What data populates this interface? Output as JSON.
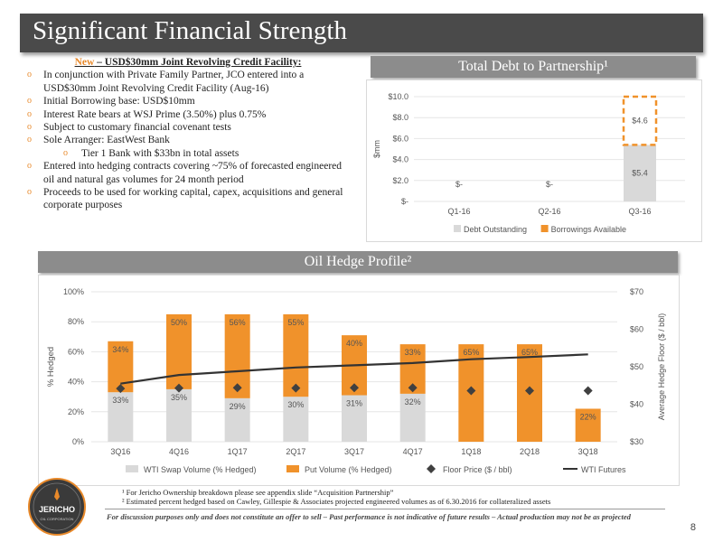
{
  "title": "Significant Financial Strength",
  "credit": {
    "heading_new": "New",
    "heading_rest": " – USD$30mm Joint Revolving Credit Facility:",
    "bullets": [
      {
        "text": "In conjunction with Private Family Partner, JCO entered into a USD$30mm Joint Revolving Credit Facility (Aug-16)",
        "sub": false
      },
      {
        "text": "Initial Borrowing base: USD$10mm",
        "sub": false
      },
      {
        "text": "Interest Rate bears at WSJ Prime (3.50%) plus 0.75%",
        "sub": false
      },
      {
        "text": "Subject to customary financial covenant tests",
        "sub": false
      },
      {
        "text": "Sole Arranger:  EastWest Bank",
        "sub": false
      },
      {
        "text": "Tier 1 Bank with $33bn in total assets",
        "sub": true
      },
      {
        "text": "Entered into hedging contracts covering ~75% of forecasted engineered oil and natural gas volumes for 24 month period",
        "sub": false
      },
      {
        "text": "Proceeds to be used for working capital, capex, acquisitions and general corporate purposes",
        "sub": false
      }
    ]
  },
  "debt_header": "Total Debt to Partnership¹",
  "hedge_header": "Oil Hedge Profile²",
  "chart_data": [
    {
      "type": "bar",
      "stacked": true,
      "categories": [
        "Q1-16",
        "Q2-16",
        "Q3-16"
      ],
      "series": [
        {
          "name": "Debt Outstanding",
          "values": [
            0,
            0,
            5.4
          ],
          "labels": [
            "$-",
            "$-",
            "$5.4"
          ],
          "color": "#d9d9d9"
        },
        {
          "name": "Borrowings Available",
          "values": [
            0,
            0,
            4.6
          ],
          "labels": [
            "",
            "",
            "$4.6"
          ],
          "color": "#f0922b"
        }
      ],
      "ylabel": "$mm",
      "ylim": [
        0,
        10
      ],
      "yticks": [
        "$-",
        "$2.0",
        "$4.0",
        "$6.0",
        "$8.0",
        "$10.0"
      ],
      "legend": "bottom"
    },
    {
      "type": "bar",
      "stacked": true,
      "categories": [
        "3Q16",
        "4Q16",
        "1Q17",
        "2Q17",
        "3Q17",
        "4Q17",
        "1Q18",
        "2Q18",
        "3Q18"
      ],
      "series": [
        {
          "name": "WTI Swap Volume (% Hedged)",
          "values": [
            33,
            35,
            29,
            30,
            31,
            32,
            0,
            0,
            0
          ],
          "labels": [
            "33%",
            "35%",
            "29%",
            "30%",
            "31%",
            "32%",
            "",
            "",
            ""
          ],
          "color": "#d9d9d9"
        },
        {
          "name": "Put Volume (% Hedged)",
          "values": [
            34,
            50,
            56,
            55,
            40,
            33,
            65,
            65,
            22
          ],
          "labels": [
            "34%",
            "50%",
            "56%",
            "55%",
            "40%",
            "33%",
            "65%",
            "65%",
            "22%"
          ],
          "color": "#f0922b"
        },
        {
          "name": "Floor Price ($ / bbl)",
          "type": "scatter",
          "axis": "right",
          "values": [
            44.2,
            44.3,
            44.4,
            44.3,
            44.4,
            44.4,
            43.6,
            43.6,
            43.6
          ],
          "color": "#404040"
        },
        {
          "name": "WTI Futures",
          "type": "line",
          "axis": "right",
          "values": [
            45.5,
            47.8,
            48.8,
            49.8,
            50.4,
            51.0,
            52.0,
            52.6,
            53.3
          ],
          "color": "#333333"
        }
      ],
      "ylabel": "% Hedged",
      "ylim": [
        0,
        100
      ],
      "yticks": [
        "0%",
        "20%",
        "40%",
        "60%",
        "80%",
        "100%"
      ],
      "y2label": "Average Hedge Floor ($ / bbl)",
      "y2lim": [
        30,
        70
      ],
      "y2ticks": [
        "$30",
        "$40",
        "$50",
        "$60",
        "$70"
      ],
      "legend": "bottom"
    }
  ],
  "footnotes": [
    "¹ For Jericho Ownership breakdown please see appendix slide “Acquisition Partnership”",
    "² Estimated percent hedged based on Cawley, Gillespie & Associates projected engineered volumes as of 6.30.2016 for collateralized assets"
  ],
  "disclaimer": "For discussion purposes only and does not constitute an offer to sell – Past performance is not indicative of future results – Actual production may not be as projected",
  "page_number": "8",
  "logo": {
    "name": "JERICHO",
    "sub": "OIL CORPORATION"
  }
}
